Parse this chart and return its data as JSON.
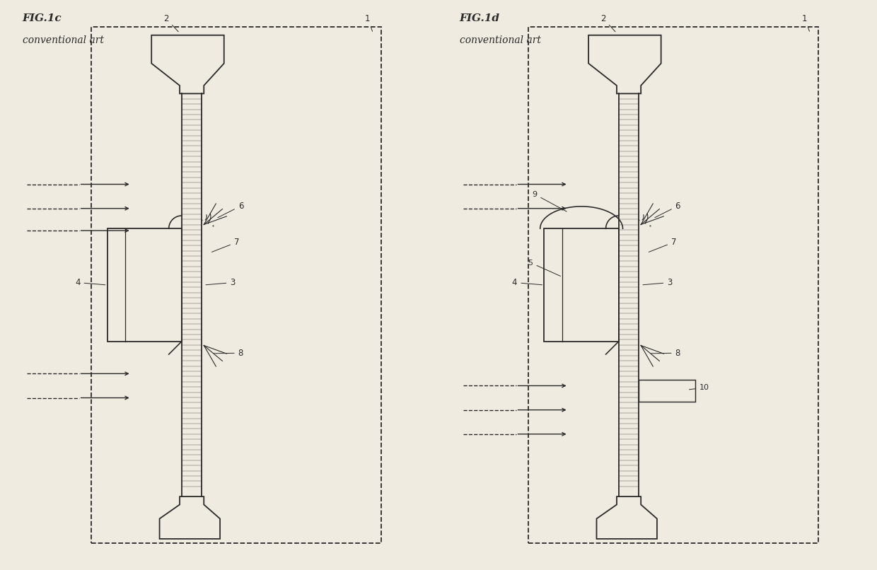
{
  "fig_background": "#f0ebe0",
  "border_color": "#2a2a2a",
  "line_color": "#2a2a2a",
  "line_width": 1.2,
  "fig1c": {
    "label": "FIG.1c",
    "sublabel": "conventional art",
    "ref_numbers": [
      "2",
      "1",
      "6",
      "7",
      "3",
      "8",
      "4"
    ]
  },
  "fig1d": {
    "label": "FIG.1d",
    "sublabel": "conventional art",
    "ref_numbers": [
      "2",
      "1",
      "6",
      "7",
      "3",
      "8",
      "4",
      "5",
      "9",
      "10"
    ]
  }
}
